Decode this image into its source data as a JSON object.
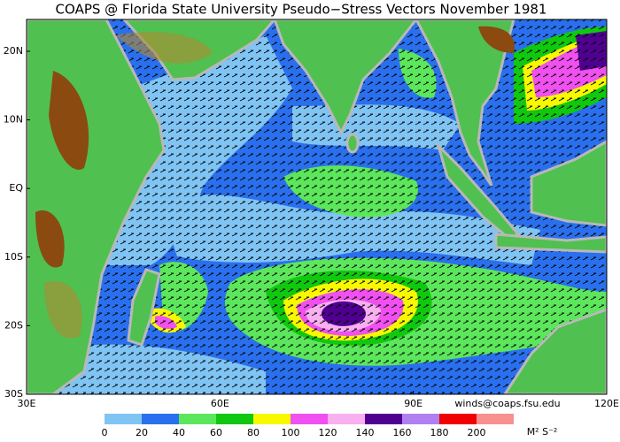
{
  "title": "COAPS @ Florida State University Pseudo−Stress Vectors  November 1981",
  "lat_labels": [
    "20N",
    "10N",
    "EQ",
    "10S",
    "20S",
    "30S"
  ],
  "lon_labels": [
    "30E",
    "60E",
    "90E",
    "120E"
  ],
  "credit": "winds@coaps.fsu.edu",
  "colorbar": {
    "ticks": [
      0,
      20,
      40,
      60,
      80,
      100,
      120,
      140,
      160,
      180,
      200
    ],
    "colors": [
      "#80c4f4",
      "#2a70ee",
      "#5ce65c",
      "#10c810",
      "#f8f800",
      "#f050f0",
      "#f8b0f0",
      "#500090",
      "#b080f0",
      "#f00000",
      "#f89090"
    ],
    "unit": "M² S⁻²"
  }
}
